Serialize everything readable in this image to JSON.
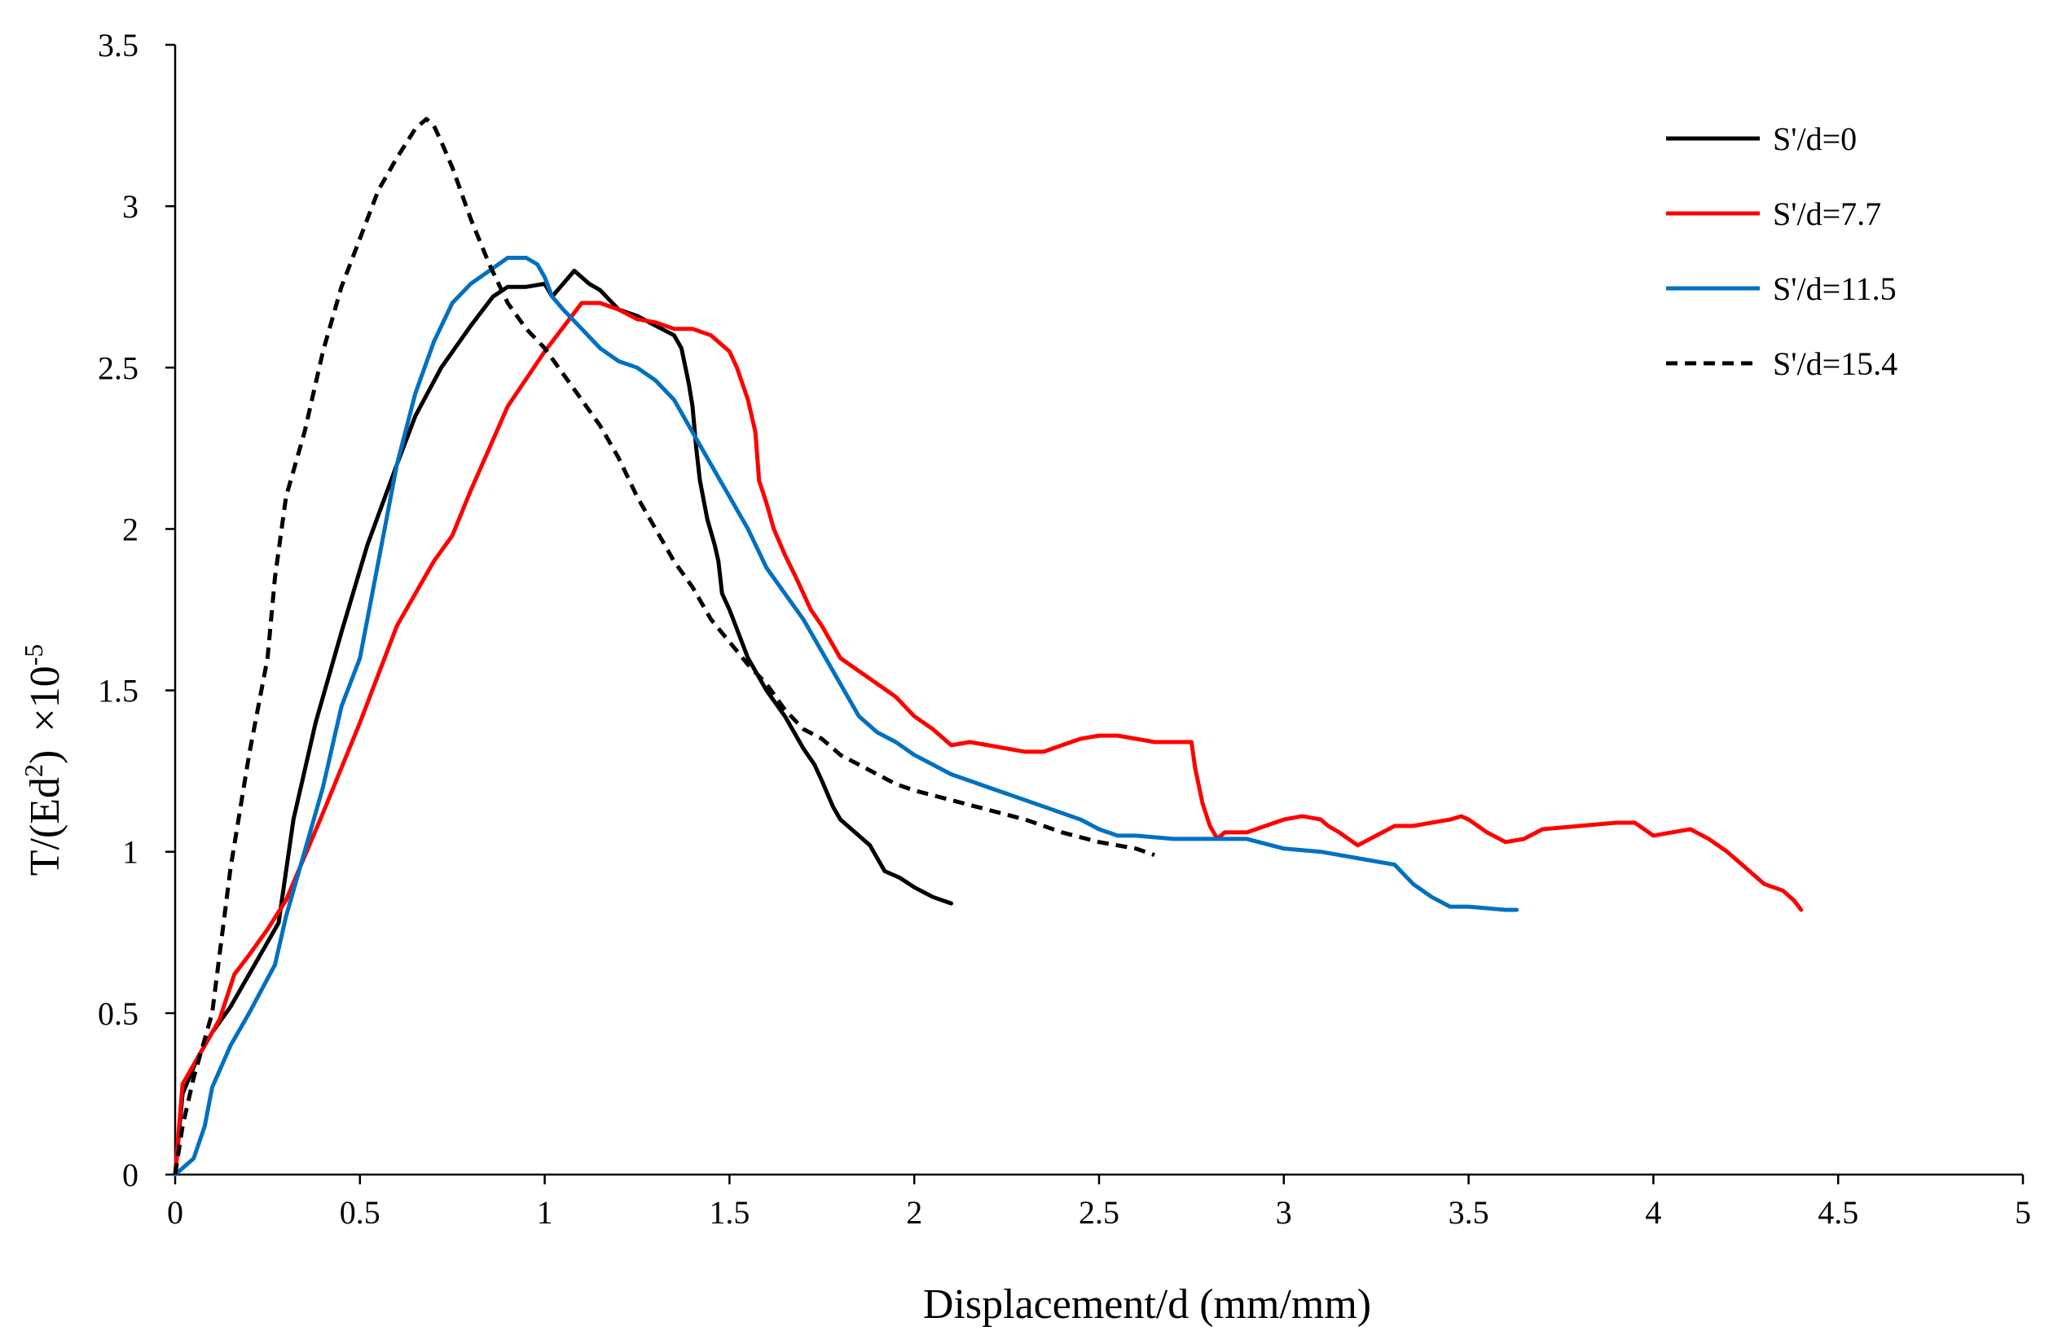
{
  "chart_data": {
    "type": "line",
    "title": "",
    "xlabel": "Displacement/d (mm/mm)",
    "ylabel": {
      "prefix": "T/(Ed",
      "sup": "2",
      "close": ")",
      "times": "×10",
      "exponent": "-5"
    },
    "xlim": [
      0,
      5
    ],
    "ylim": [
      0,
      3.5
    ],
    "xticks": [
      0,
      0.5,
      1,
      1.5,
      2,
      2.5,
      3,
      3.5,
      4,
      4.5,
      5
    ],
    "xtick_labels": [
      "0",
      "0.5",
      "1",
      "1.5",
      "2",
      "2.5",
      "3",
      "3.5",
      "4",
      "4.5",
      "5"
    ],
    "yticks": [
      0,
      0.5,
      1,
      1.5,
      2,
      2.5,
      3,
      3.5
    ],
    "ytick_labels": [
      "0",
      "0.5",
      "1",
      "1.5",
      "2",
      "2.5",
      "3",
      "3.5"
    ],
    "grid": false,
    "legend_position": "top-right",
    "series": [
      {
        "name": "S'/d=0",
        "color": "#000000",
        "dash": "solid",
        "x": [
          0,
          0.02,
          0.06,
          0.1,
          0.15,
          0.2,
          0.25,
          0.28,
          0.32,
          0.38,
          0.45,
          0.52,
          0.6,
          0.65,
          0.72,
          0.8,
          0.86,
          0.9,
          0.95,
          1.0,
          1.02,
          1.05,
          1.08,
          1.12,
          1.15,
          1.2,
          1.25,
          1.3,
          1.35,
          1.37,
          1.39,
          1.4,
          1.41,
          1.42,
          1.44,
          1.46,
          1.47,
          1.48,
          1.5,
          1.55,
          1.6,
          1.65,
          1.7,
          1.73,
          1.75,
          1.78,
          1.8,
          1.84,
          1.88,
          1.9,
          1.92,
          1.96,
          2.0,
          2.05,
          2.1
        ],
        "y": [
          0,
          0.25,
          0.36,
          0.44,
          0.52,
          0.62,
          0.72,
          0.78,
          1.1,
          1.4,
          1.68,
          1.95,
          2.2,
          2.35,
          2.5,
          2.63,
          2.72,
          2.75,
          2.75,
          2.76,
          2.72,
          2.76,
          2.8,
          2.76,
          2.74,
          2.68,
          2.66,
          2.63,
          2.6,
          2.56,
          2.45,
          2.38,
          2.25,
          2.15,
          2.03,
          1.95,
          1.9,
          1.8,
          1.75,
          1.6,
          1.5,
          1.42,
          1.32,
          1.27,
          1.22,
          1.14,
          1.1,
          1.06,
          1.02,
          0.98,
          0.94,
          0.92,
          0.89,
          0.86,
          0.84
        ]
      },
      {
        "name": "S'/d=7.7",
        "color": "#ff0000",
        "dash": "solid",
        "x": [
          0,
          0.02,
          0.04,
          0.08,
          0.12,
          0.16,
          0.2,
          0.25,
          0.3,
          0.4,
          0.5,
          0.6,
          0.7,
          0.75,
          0.8,
          0.85,
          0.9,
          1.0,
          1.1,
          1.15,
          1.2,
          1.25,
          1.3,
          1.35,
          1.4,
          1.45,
          1.5,
          1.52,
          1.55,
          1.57,
          1.58,
          1.6,
          1.62,
          1.65,
          1.68,
          1.7,
          1.72,
          1.75,
          1.8,
          1.85,
          1.9,
          1.95,
          2.0,
          2.05,
          2.1,
          2.15,
          2.2,
          2.25,
          2.3,
          2.35,
          2.4,
          2.45,
          2.5,
          2.55,
          2.6,
          2.65,
          2.7,
          2.75,
          2.76,
          2.78,
          2.8,
          2.82,
          2.84,
          2.9,
          3.0,
          3.05,
          3.1,
          3.12,
          3.15,
          3.2,
          3.25,
          3.3,
          3.35,
          3.4,
          3.45,
          3.48,
          3.5,
          3.55,
          3.6,
          3.65,
          3.7,
          3.8,
          3.9,
          3.95,
          4.0,
          4.05,
          4.1,
          4.15,
          4.2,
          4.25,
          4.3,
          4.35,
          4.38,
          4.4
        ],
        "y": [
          0,
          0.28,
          0.32,
          0.4,
          0.48,
          0.62,
          0.68,
          0.76,
          0.85,
          1.12,
          1.4,
          1.7,
          1.9,
          1.98,
          2.12,
          2.25,
          2.38,
          2.55,
          2.7,
          2.7,
          2.68,
          2.65,
          2.64,
          2.62,
          2.62,
          2.6,
          2.55,
          2.5,
          2.4,
          2.3,
          2.15,
          2.08,
          2.0,
          1.92,
          1.85,
          1.8,
          1.75,
          1.7,
          1.6,
          1.56,
          1.52,
          1.48,
          1.42,
          1.38,
          1.33,
          1.34,
          1.33,
          1.32,
          1.31,
          1.31,
          1.33,
          1.35,
          1.36,
          1.36,
          1.35,
          1.34,
          1.34,
          1.34,
          1.26,
          1.15,
          1.08,
          1.04,
          1.06,
          1.06,
          1.1,
          1.11,
          1.1,
          1.08,
          1.06,
          1.02,
          1.05,
          1.08,
          1.08,
          1.09,
          1.1,
          1.11,
          1.1,
          1.06,
          1.03,
          1.04,
          1.07,
          1.08,
          1.09,
          1.09,
          1.05,
          1.06,
          1.07,
          1.04,
          1.0,
          0.95,
          0.9,
          0.88,
          0.85,
          0.82
        ]
      },
      {
        "name": "S'/d=11.5",
        "color": "#0070c0",
        "dash": "solid",
        "x": [
          0,
          0.05,
          0.08,
          0.1,
          0.15,
          0.2,
          0.27,
          0.3,
          0.35,
          0.4,
          0.45,
          0.5,
          0.55,
          0.6,
          0.65,
          0.7,
          0.75,
          0.8,
          0.85,
          0.9,
          0.95,
          0.98,
          1.0,
          1.02,
          1.05,
          1.1,
          1.15,
          1.2,
          1.25,
          1.3,
          1.35,
          1.4,
          1.45,
          1.5,
          1.55,
          1.6,
          1.65,
          1.7,
          1.75,
          1.8,
          1.85,
          1.9,
          1.95,
          2.0,
          2.05,
          2.1,
          2.15,
          2.2,
          2.25,
          2.3,
          2.35,
          2.4,
          2.45,
          2.5,
          2.55,
          2.6,
          2.7,
          2.8,
          2.9,
          3.0,
          3.1,
          3.2,
          3.3,
          3.35,
          3.4,
          3.45,
          3.5,
          3.6,
          3.63
        ],
        "y": [
          0,
          0.05,
          0.15,
          0.27,
          0.4,
          0.5,
          0.65,
          0.8,
          1.0,
          1.2,
          1.45,
          1.6,
          1.9,
          2.2,
          2.42,
          2.58,
          2.7,
          2.76,
          2.8,
          2.84,
          2.84,
          2.82,
          2.78,
          2.72,
          2.68,
          2.62,
          2.56,
          2.52,
          2.5,
          2.46,
          2.4,
          2.3,
          2.2,
          2.1,
          2.0,
          1.88,
          1.8,
          1.72,
          1.62,
          1.52,
          1.42,
          1.37,
          1.34,
          1.3,
          1.27,
          1.24,
          1.22,
          1.2,
          1.18,
          1.16,
          1.14,
          1.12,
          1.1,
          1.07,
          1.05,
          1.05,
          1.04,
          1.04,
          1.04,
          1.01,
          1.0,
          0.98,
          0.96,
          0.9,
          0.86,
          0.83,
          0.83,
          0.82,
          0.82
        ]
      },
      {
        "name": "S'/d=15.4",
        "color": "#000000",
        "dash": "dashed",
        "x": [
          0,
          0.02,
          0.05,
          0.1,
          0.15,
          0.2,
          0.25,
          0.27,
          0.3,
          0.35,
          0.4,
          0.45,
          0.5,
          0.55,
          0.6,
          0.65,
          0.68,
          0.7,
          0.72,
          0.75,
          0.8,
          0.85,
          0.9,
          0.95,
          1.0,
          1.05,
          1.1,
          1.15,
          1.2,
          1.25,
          1.3,
          1.35,
          1.4,
          1.45,
          1.5,
          1.55,
          1.6,
          1.65,
          1.7,
          1.75,
          1.8,
          1.85,
          1.9,
          1.95,
          2.0,
          2.1,
          2.2,
          2.3,
          2.4,
          2.5,
          2.6,
          2.65
        ],
        "y": [
          0,
          0.15,
          0.3,
          0.5,
          0.95,
          1.3,
          1.6,
          1.85,
          2.1,
          2.3,
          2.55,
          2.75,
          2.9,
          3.05,
          3.15,
          3.24,
          3.27,
          3.25,
          3.2,
          3.12,
          2.96,
          2.82,
          2.7,
          2.62,
          2.56,
          2.48,
          2.4,
          2.32,
          2.22,
          2.1,
          2.0,
          1.9,
          1.82,
          1.72,
          1.65,
          1.58,
          1.52,
          1.44,
          1.38,
          1.35,
          1.3,
          1.27,
          1.24,
          1.21,
          1.19,
          1.16,
          1.13,
          1.1,
          1.06,
          1.03,
          1.01,
          0.99
        ]
      }
    ]
  }
}
